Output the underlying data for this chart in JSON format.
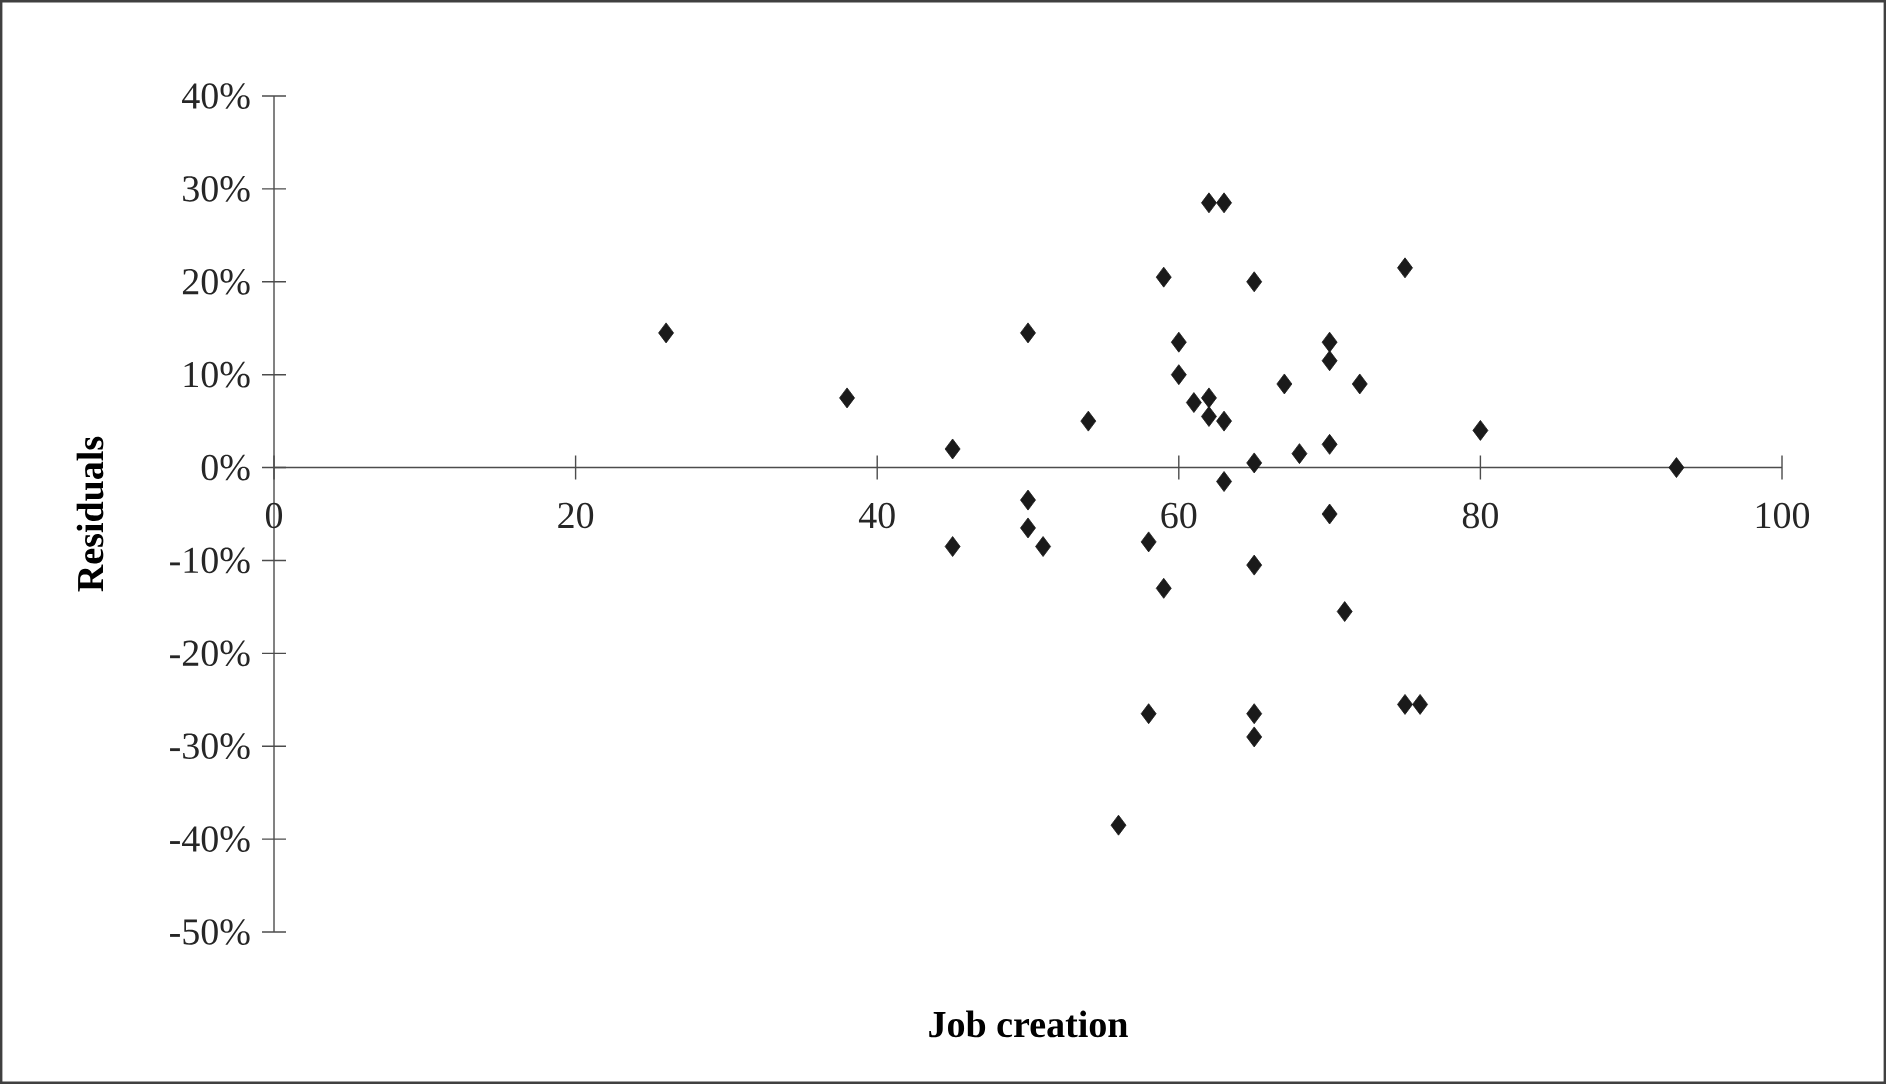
{
  "chart_data": {
    "type": "scatter",
    "xlabel": "Job creation",
    "ylabel": "Residuals",
    "marker": "diamond",
    "color": "#1a1a1a",
    "x": [
      26,
      38,
      45,
      45,
      50,
      50,
      50,
      51,
      54,
      58,
      59,
      59,
      60,
      60,
      61,
      62,
      62,
      63,
      62,
      63,
      63,
      58,
      56,
      65,
      65,
      65,
      65,
      65,
      67,
      68,
      70,
      70,
      72,
      70,
      70,
      71,
      75,
      75,
      76,
      80,
      93
    ],
    "values": [
      14.5,
      7.5,
      2,
      -8.5,
      14.5,
      -3.5,
      -6.5,
      -8.5,
      5,
      -8,
      20.5,
      -13,
      13.5,
      10,
      7,
      7.5,
      5.5,
      5,
      28.5,
      28.5,
      -1.5,
      -26.5,
      -38.5,
      0.5,
      20,
      -10.5,
      -26.5,
      -29,
      9,
      1.5,
      13.5,
      11.5,
      9,
      2.5,
      -5,
      -15.5,
      21.5,
      -25.5,
      -25.5,
      4,
      0
    ],
    "xlim": [
      0,
      100
    ],
    "ylim": [
      -50,
      40
    ],
    "xticks": [
      0,
      20,
      40,
      60,
      80,
      100
    ],
    "yticks": [
      {
        "value": -50,
        "label": "-50%"
      },
      {
        "value": -40,
        "label": "-40%"
      },
      {
        "value": -30,
        "label": "-30%"
      },
      {
        "value": -20,
        "label": "-20%"
      },
      {
        "value": -10,
        "label": "-10%"
      },
      {
        "value": 0,
        "label": "0%"
      },
      {
        "value": 10,
        "label": "10%"
      },
      {
        "value": 20,
        "label": "20%"
      },
      {
        "value": 30,
        "label": "30%"
      },
      {
        "value": 40,
        "label": "40%"
      }
    ]
  }
}
